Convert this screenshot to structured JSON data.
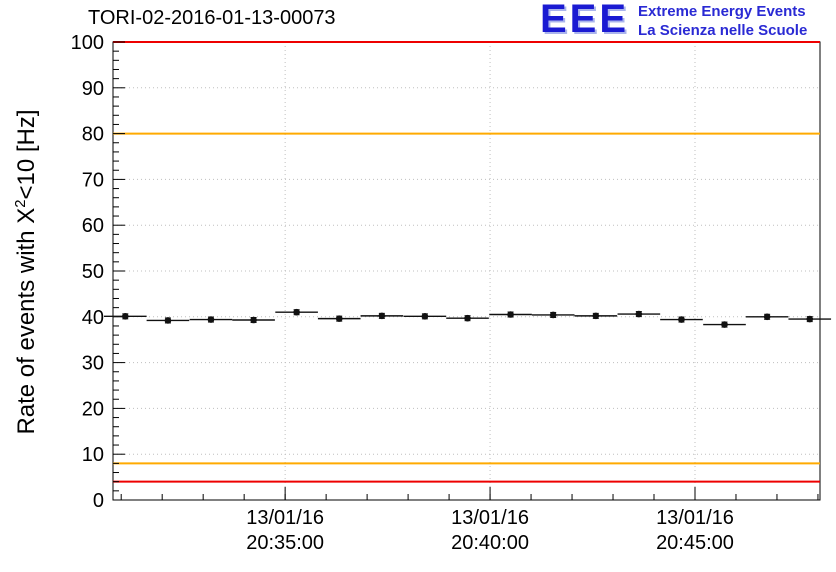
{
  "logo": {
    "acronym": "EEE",
    "line1": "Extreme Energy Events",
    "line2": "La Scienza nelle Scuole",
    "color": "#2a2ad4"
  },
  "chart_data": {
    "type": "scatter",
    "title": "TORI-02-2016-01-13-00073",
    "ylabel": "Rate of events with X^2<10 [Hz]",
    "ylabel_parts": {
      "prefix": "Rate of events with X",
      "sup": "2",
      "suffix": "<10 [Hz]"
    },
    "xlabel": "",
    "grid": true,
    "legend": "none",
    "ylim": [
      0,
      100
    ],
    "y": {
      "min": 0,
      "max": 100,
      "major_step": 10,
      "minor_step": 2
    },
    "x": {
      "min": 0.8,
      "max": 18.05,
      "major_ticks": [
        5,
        10,
        15
      ],
      "minor_step": 1,
      "unit": "minutes after 20:30:00 on 13/01/16"
    },
    "x_axis_labels": [
      {
        "t": 5,
        "date": "13/01/16",
        "time": "20:35:00"
      },
      {
        "t": 10,
        "date": "13/01/16",
        "time": "20:40:00"
      },
      {
        "t": 15,
        "date": "13/01/16",
        "time": "20:45:00"
      }
    ],
    "y_tick_labels": [
      "0",
      "10",
      "20",
      "30",
      "40",
      "50",
      "60",
      "70",
      "80",
      "90",
      "100"
    ],
    "hlines": [
      {
        "y": 100,
        "color": "#ee0000",
        "name": "upper-alarm"
      },
      {
        "y": 80,
        "color": "#ffaa00",
        "name": "upper-warning"
      },
      {
        "y": 8,
        "color": "#ffaa00",
        "name": "lower-warning"
      },
      {
        "y": 4,
        "color": "#ee0000",
        "name": "lower-alarm"
      }
    ],
    "marker_color": "#111111",
    "error_x_halfwidth": 0.52,
    "error_y_halfwidth": 0.55,
    "points": [
      {
        "t": 1.1,
        "rate_hz": 40.1
      },
      {
        "t": 2.14,
        "rate_hz": 39.2
      },
      {
        "t": 3.19,
        "rate_hz": 39.4
      },
      {
        "t": 4.23,
        "rate_hz": 39.3
      },
      {
        "t": 5.28,
        "rate_hz": 41.0
      },
      {
        "t": 6.32,
        "rate_hz": 39.6
      },
      {
        "t": 7.36,
        "rate_hz": 40.2
      },
      {
        "t": 8.41,
        "rate_hz": 40.1
      },
      {
        "t": 9.45,
        "rate_hz": 39.7
      },
      {
        "t": 10.5,
        "rate_hz": 40.5
      },
      {
        "t": 11.54,
        "rate_hz": 40.4
      },
      {
        "t": 12.58,
        "rate_hz": 40.2
      },
      {
        "t": 13.63,
        "rate_hz": 40.6
      },
      {
        "t": 14.67,
        "rate_hz": 39.4
      },
      {
        "t": 15.72,
        "rate_hz": 38.3
      },
      {
        "t": 16.76,
        "rate_hz": 40.0
      },
      {
        "t": 17.8,
        "rate_hz": 39.5
      }
    ]
  }
}
